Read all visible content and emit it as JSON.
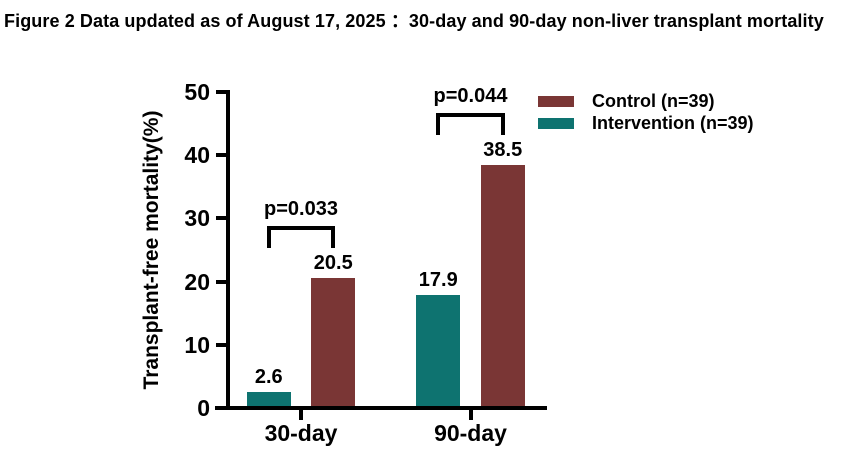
{
  "title": {
    "text": "Figure 2 Data updated as of August 17, 2025 ：30-day and 90-day non-liver transplant mortality"
  },
  "chart_data": {
    "type": "bar",
    "categories": [
      "30-day",
      "90-day"
    ],
    "series": [
      {
        "name": "Control (n=39)",
        "color": "#7A3635",
        "values": [
          20.5,
          38.5
        ]
      },
      {
        "name": "Intervention (n=39)",
        "color": "#0E7370",
        "values": [
          2.6,
          17.9
        ]
      }
    ],
    "bar_order_left_to_right": [
      "Intervention (n=39)",
      "Control (n=39)"
    ],
    "ylabel": "Transplant-free mortality(%)",
    "ylim": [
      0,
      50
    ],
    "yticks": [
      0,
      10,
      20,
      30,
      40,
      50
    ],
    "grid": false,
    "legend_position": "top-right",
    "axis_color": "#000000",
    "annotations": [
      {
        "label": "p=0.033",
        "category": "30-day",
        "y": 28.5
      },
      {
        "label": "p=0.044",
        "category": "90-day",
        "y": 46.4
      }
    ]
  }
}
